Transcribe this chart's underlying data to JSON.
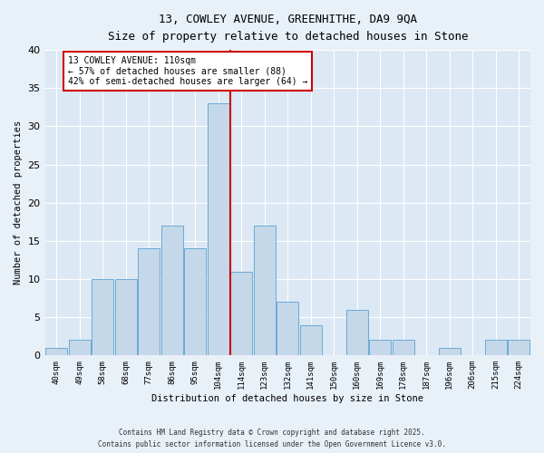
{
  "title1": "13, COWLEY AVENUE, GREENHITHE, DA9 9QA",
  "title2": "Size of property relative to detached houses in Stone",
  "xlabel": "Distribution of detached houses by size in Stone",
  "ylabel": "Number of detached properties",
  "categories": [
    "40sqm",
    "49sqm",
    "58sqm",
    "68sqm",
    "77sqm",
    "86sqm",
    "95sqm",
    "104sqm",
    "114sqm",
    "123sqm",
    "132sqm",
    "141sqm",
    "150sqm",
    "160sqm",
    "169sqm",
    "178sqm",
    "187sqm",
    "196sqm",
    "206sqm",
    "215sqm",
    "224sqm"
  ],
  "values": [
    1,
    2,
    10,
    10,
    14,
    17,
    14,
    33,
    11,
    17,
    7,
    4,
    0,
    6,
    2,
    2,
    0,
    1,
    0,
    2,
    2
  ],
  "bar_color": "#c5d8ea",
  "bar_edge_color": "#6aaad4",
  "vline_color": "#cc0000",
  "vline_x_idx": 8,
  "annotation_text": "13 COWLEY AVENUE: 110sqm\n← 57% of detached houses are smaller (88)\n42% of semi-detached houses are larger (64) →",
  "annotation_box_color": "#ffffff",
  "annotation_box_edge": "#cc0000",
  "ylim": [
    0,
    40
  ],
  "yticks": [
    0,
    5,
    10,
    15,
    20,
    25,
    30,
    35,
    40
  ],
  "bg_color": "#dce8f4",
  "fig_bg_color": "#e8f0f8",
  "footer1": "Contains HM Land Registry data © Crown copyright and database right 2025.",
  "footer2": "Contains public sector information licensed under the Open Government Licence v3.0."
}
